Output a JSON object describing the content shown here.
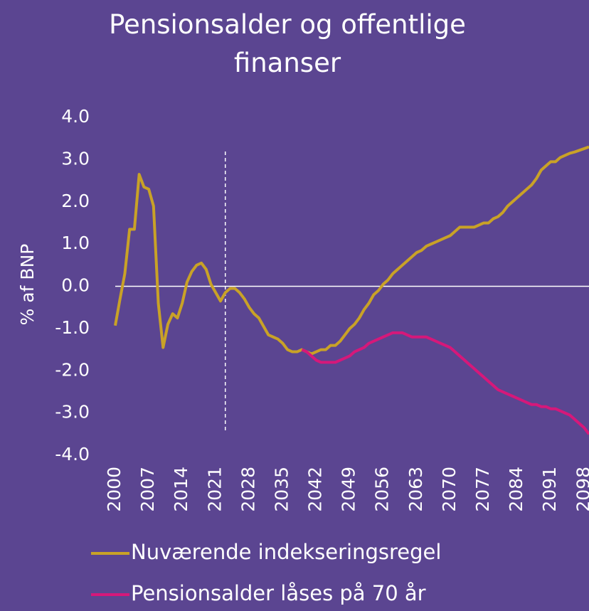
{
  "chart_data": {
    "type": "line",
    "title": "Pensionsalder og offentlige finanser",
    "ylabel": "% af BNP",
    "x": [
      2000,
      2001,
      2002,
      2003,
      2004,
      2005,
      2006,
      2007,
      2008,
      2009,
      2010,
      2011,
      2012,
      2013,
      2014,
      2015,
      2016,
      2017,
      2018,
      2019,
      2020,
      2021,
      2022,
      2023,
      2024,
      2025,
      2026,
      2027,
      2028,
      2029,
      2030,
      2031,
      2032,
      2033,
      2034,
      2035,
      2036,
      2037,
      2038,
      2039,
      2040,
      2041,
      2042,
      2043,
      2044,
      2045,
      2046,
      2047,
      2048,
      2049,
      2050,
      2051,
      2052,
      2053,
      2054,
      2055,
      2056,
      2057,
      2058,
      2059,
      2060,
      2061,
      2062,
      2063,
      2064,
      2065,
      2066,
      2067,
      2068,
      2069,
      2070,
      2071,
      2072,
      2073,
      2074,
      2075,
      2076,
      2077,
      2078,
      2079,
      2080,
      2081,
      2082,
      2083,
      2084,
      2085,
      2086,
      2087,
      2088,
      2089,
      2090,
      2091,
      2092,
      2093,
      2094,
      2095,
      2096,
      2097,
      2098,
      2099
    ],
    "series": [
      {
        "name": "Nuværende indekseringsregel",
        "color": "#c9a227",
        "values": [
          -0.93,
          -0.3,
          0.3,
          1.35,
          1.35,
          2.65,
          2.35,
          2.3,
          1.9,
          -0.4,
          -1.45,
          -0.9,
          -0.65,
          -0.75,
          -0.4,
          0.1,
          0.35,
          0.5,
          0.55,
          0.4,
          0.05,
          -0.15,
          -0.35,
          -0.15,
          -0.05,
          -0.05,
          -0.15,
          -0.3,
          -0.5,
          -0.65,
          -0.75,
          -0.95,
          -1.15,
          -1.2,
          -1.25,
          -1.35,
          -1.5,
          -1.55,
          -1.55,
          -1.5,
          -1.55,
          -1.6,
          -1.55,
          -1.5,
          -1.5,
          -1.4,
          -1.4,
          -1.3,
          -1.15,
          -1.0,
          -0.9,
          -0.75,
          -0.55,
          -0.4,
          -0.2,
          -0.1,
          0.05,
          0.15,
          0.3,
          0.4,
          0.5,
          0.6,
          0.7,
          0.8,
          0.85,
          0.95,
          1.0,
          1.05,
          1.1,
          1.15,
          1.2,
          1.3,
          1.4,
          1.4,
          1.4,
          1.4,
          1.45,
          1.5,
          1.5,
          1.6,
          1.65,
          1.75,
          1.9,
          2.0,
          2.1,
          2.2,
          2.3,
          2.4,
          2.55,
          2.75,
          2.85,
          2.95,
          2.95,
          3.05,
          3.1,
          3.15,
          3.18,
          3.22,
          3.26,
          3.3
        ]
      },
      {
        "name": "Pensionsalder låses på 70 år",
        "color": "#d6187a",
        "values": [
          null,
          null,
          null,
          null,
          null,
          null,
          null,
          null,
          null,
          null,
          null,
          null,
          null,
          null,
          null,
          null,
          null,
          null,
          null,
          null,
          null,
          null,
          null,
          null,
          null,
          null,
          null,
          null,
          null,
          null,
          null,
          null,
          null,
          null,
          null,
          null,
          null,
          null,
          null,
          -1.5,
          -1.55,
          -1.65,
          -1.75,
          -1.8,
          -1.8,
          -1.8,
          -1.8,
          -1.75,
          -1.7,
          -1.65,
          -1.55,
          -1.5,
          -1.45,
          -1.35,
          -1.3,
          -1.25,
          -1.2,
          -1.15,
          -1.1,
          -1.1,
          -1.1,
          -1.15,
          -1.2,
          -1.2,
          -1.2,
          -1.2,
          -1.25,
          -1.3,
          -1.35,
          -1.4,
          -1.45,
          -1.55,
          -1.65,
          -1.75,
          -1.85,
          -1.95,
          -2.05,
          -2.15,
          -2.25,
          -2.35,
          -2.45,
          -2.5,
          -2.55,
          -2.6,
          -2.65,
          -2.7,
          -2.75,
          -2.8,
          -2.8,
          -2.85,
          -2.85,
          -2.9,
          -2.9,
          -2.95,
          -3.0,
          -3.05,
          -3.15,
          -3.25,
          -3.35,
          -3.5
        ]
      }
    ],
    "xlim": [
      2000,
      2099
    ],
    "xticks": [
      2000,
      2007,
      2014,
      2021,
      2028,
      2035,
      2042,
      2049,
      2056,
      2063,
      2070,
      2077,
      2084,
      2091,
      2098
    ],
    "ylim": [
      -4,
      4
    ],
    "yticks": [
      {
        "value": 4,
        "label": "4.0"
      },
      {
        "value": 3,
        "label": "3.0"
      },
      {
        "value": 2,
        "label": "2.0"
      },
      {
        "value": 1,
        "label": "1.0"
      },
      {
        "value": 0,
        "label": "0.0"
      },
      {
        "value": -1,
        "label": "-1.0"
      },
      {
        "value": -2,
        "label": "-2.0"
      },
      {
        "value": -3,
        "label": "-3.0"
      },
      {
        "value": -4,
        "label": "-4.0"
      }
    ],
    "vline": 2023,
    "legend": "bottom"
  }
}
